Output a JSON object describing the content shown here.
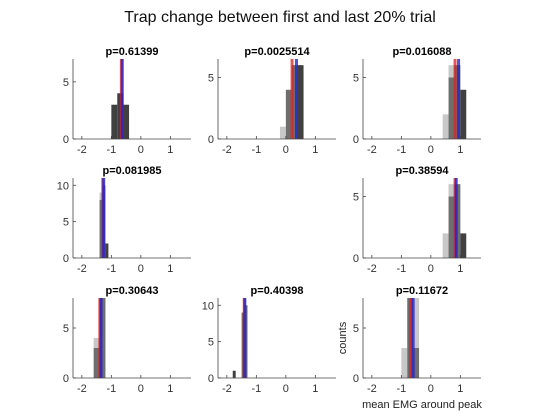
{
  "figure_title": "Trap change between first and last 20% trial",
  "colors": {
    "hist_first": "#c8c8c8",
    "hist_last": "#404040",
    "overlap": "#6e6e6e",
    "mean_first": "#dd2222",
    "mean_last": "#2222cc",
    "axis": "#444444"
  },
  "chart_data": [
    {
      "type": "bar",
      "title": "p=0.61399",
      "xlim": [
        -2.3,
        1.7
      ],
      "ylim": [
        0,
        7
      ],
      "xticks": [
        -2,
        -1,
        0,
        1
      ],
      "yticks": [
        0,
        5
      ],
      "bin_width": 0.2,
      "bins": [
        {
          "x": -0.9,
          "first": 0,
          "last": 3
        },
        {
          "x": -0.7,
          "first": 0,
          "last": 4
        },
        {
          "x": -0.5,
          "first": 0,
          "last": 3
        }
      ],
      "mean_first": -0.66,
      "mean_last": -0.63,
      "xlabel": "",
      "ylabel": ""
    },
    {
      "type": "bar",
      "title": "p=0.0025514",
      "xlim": [
        -2.3,
        1.7
      ],
      "ylim": [
        0,
        6.5
      ],
      "xticks": [
        -2,
        -1,
        0,
        1
      ],
      "yticks": [
        0,
        5
      ],
      "bin_width": 0.2,
      "bins": [
        {
          "x": -0.1,
          "first": 1,
          "last": 0
        },
        {
          "x": 0.1,
          "first": 4,
          "last": 4
        },
        {
          "x": 0.3,
          "first": 6,
          "last": 6
        },
        {
          "x": 0.5,
          "first": 0,
          "last": 6
        }
      ],
      "mean_first": 0.21,
      "mean_last": 0.36,
      "xlabel": "",
      "ylabel": ""
    },
    {
      "type": "bar",
      "title": "p=0.016088",
      "xlim": [
        -2.3,
        1.7
      ],
      "ylim": [
        0,
        6.5
      ],
      "xticks": [
        -2,
        -1,
        0,
        1
      ],
      "yticks": [
        0,
        5
      ],
      "bin_width": 0.2,
      "bins": [
        {
          "x": 0.5,
          "first": 2,
          "last": 0
        },
        {
          "x": 0.7,
          "first": 6,
          "last": 5
        },
        {
          "x": 0.9,
          "first": 6,
          "last": 6
        },
        {
          "x": 1.1,
          "first": 0,
          "last": 4
        }
      ],
      "mean_first": 0.82,
      "mean_last": 0.94,
      "xlabel": "",
      "ylabel": ""
    },
    {
      "type": "bar",
      "title": "p=0.081985",
      "xlim": [
        -2.3,
        1.7
      ],
      "ylim": [
        0,
        11
      ],
      "xticks": [
        -2,
        -1,
        0,
        1
      ],
      "yticks": [
        0,
        5,
        10
      ],
      "bin_width": 0.1,
      "bins": [
        {
          "x": -1.35,
          "first": 9,
          "last": 8
        },
        {
          "x": -1.25,
          "first": 10,
          "last": 10
        },
        {
          "x": -1.15,
          "first": 0,
          "last": 2
        }
      ],
      "mean_first": -1.29,
      "mean_last": -1.26,
      "xlabel": "",
      "ylabel": ""
    },
    null,
    {
      "type": "bar",
      "title": "p=0.38594",
      "xlim": [
        -2.3,
        1.7
      ],
      "ylim": [
        0,
        6.5
      ],
      "xticks": [
        -2,
        -1,
        0,
        1
      ],
      "yticks": [
        0,
        5
      ],
      "bin_width": 0.2,
      "bins": [
        {
          "x": 0.5,
          "first": 2,
          "last": 0
        },
        {
          "x": 0.7,
          "first": 6,
          "last": 5
        },
        {
          "x": 0.9,
          "first": 6,
          "last": 6
        },
        {
          "x": 1.1,
          "first": 0,
          "last": 2
        }
      ],
      "mean_first": 0.82,
      "mean_last": 0.86,
      "xlabel": "",
      "ylabel": ""
    },
    {
      "type": "bar",
      "title": "p=0.30643",
      "xlim": [
        -2.3,
        1.7
      ],
      "ylim": [
        0,
        8
      ],
      "xticks": [
        -2,
        -1,
        0,
        1
      ],
      "yticks": [
        0,
        5
      ],
      "bin_width": 0.2,
      "bins": [
        {
          "x": -1.5,
          "first": 4,
          "last": 3
        },
        {
          "x": -1.3,
          "first": 8,
          "last": 8
        }
      ],
      "mean_first": -1.39,
      "mean_last": -1.35,
      "xlabel": "",
      "ylabel": ""
    },
    {
      "type": "bar",
      "title": "p=0.40398",
      "xlim": [
        -2.3,
        1.7
      ],
      "ylim": [
        0,
        11
      ],
      "xticks": [
        -2,
        -1,
        0,
        1
      ],
      "yticks": [
        0,
        5,
        10
      ],
      "bin_width": 0.1,
      "bins": [
        {
          "x": -1.75,
          "first": 0,
          "last": 1
        },
        {
          "x": -1.45,
          "first": 9,
          "last": 9
        },
        {
          "x": -1.35,
          "first": 10,
          "last": 10
        }
      ],
      "mean_first": -1.41,
      "mean_last": -1.39,
      "xlabel": "",
      "ylabel": ""
    },
    {
      "type": "bar",
      "title": "p=0.11672",
      "xlim": [
        -2.3,
        1.7
      ],
      "ylim": [
        0,
        8
      ],
      "xticks": [
        -2,
        -1,
        0,
        1
      ],
      "yticks": [
        0,
        5
      ],
      "bin_width": 0.2,
      "bins": [
        {
          "x": -0.9,
          "first": 3,
          "last": 0
        },
        {
          "x": -0.7,
          "first": 8,
          "last": 8
        },
        {
          "x": -0.5,
          "first": 8,
          "last": 3
        }
      ],
      "mean_first": -0.68,
      "mean_last": -0.6,
      "xlabel": "mean EMG around peak",
      "ylabel": "counts"
    }
  ]
}
